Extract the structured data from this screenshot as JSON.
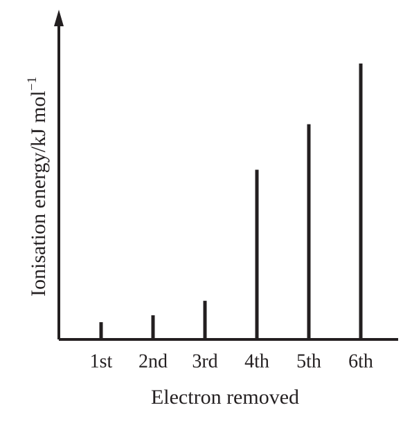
{
  "chart_data": {
    "type": "bar",
    "x_label": "Electron removed",
    "y_label": "Ionisation energy/kJ mol",
    "y_label_superscript": "−1",
    "categories": [
      "1st",
      "2nd",
      "3rd",
      "4th",
      "5th",
      "6th"
    ],
    "values": [
      23,
      33,
      54,
      244,
      310,
      398
    ],
    "color": "#231f20",
    "ylim": [
      0,
      460
    ]
  }
}
